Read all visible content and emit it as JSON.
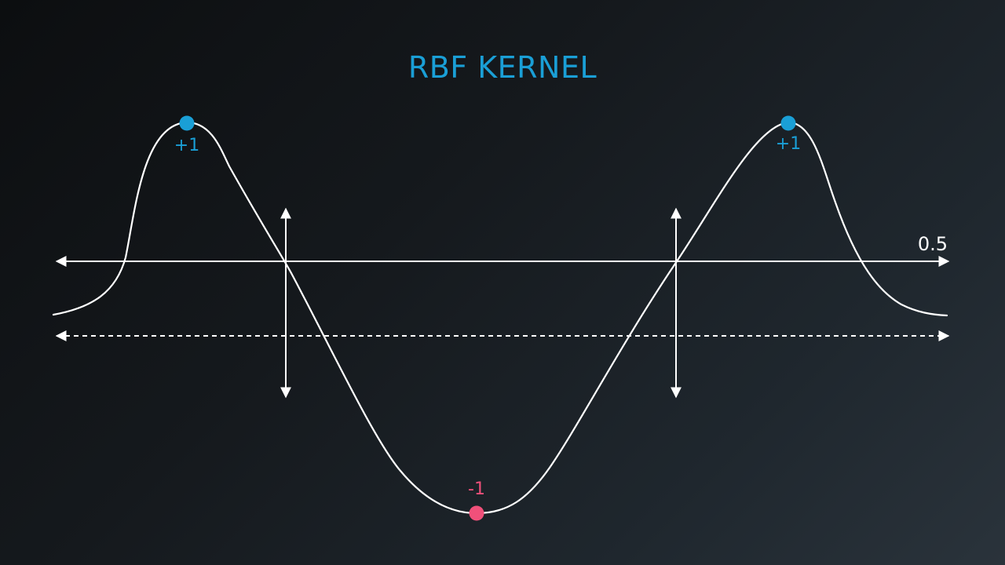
{
  "title": "RBF KERNEL",
  "threshold_label": "0.5",
  "colors": {
    "positive": "#1a9fd6",
    "negative": "#f0507a",
    "line": "#ffffff",
    "title": "#1a9fd6"
  },
  "points": [
    {
      "label": "+1",
      "class": "positive"
    },
    {
      "label": "-1",
      "class": "negative"
    },
    {
      "label": "+1",
      "class": "positive"
    }
  ]
}
